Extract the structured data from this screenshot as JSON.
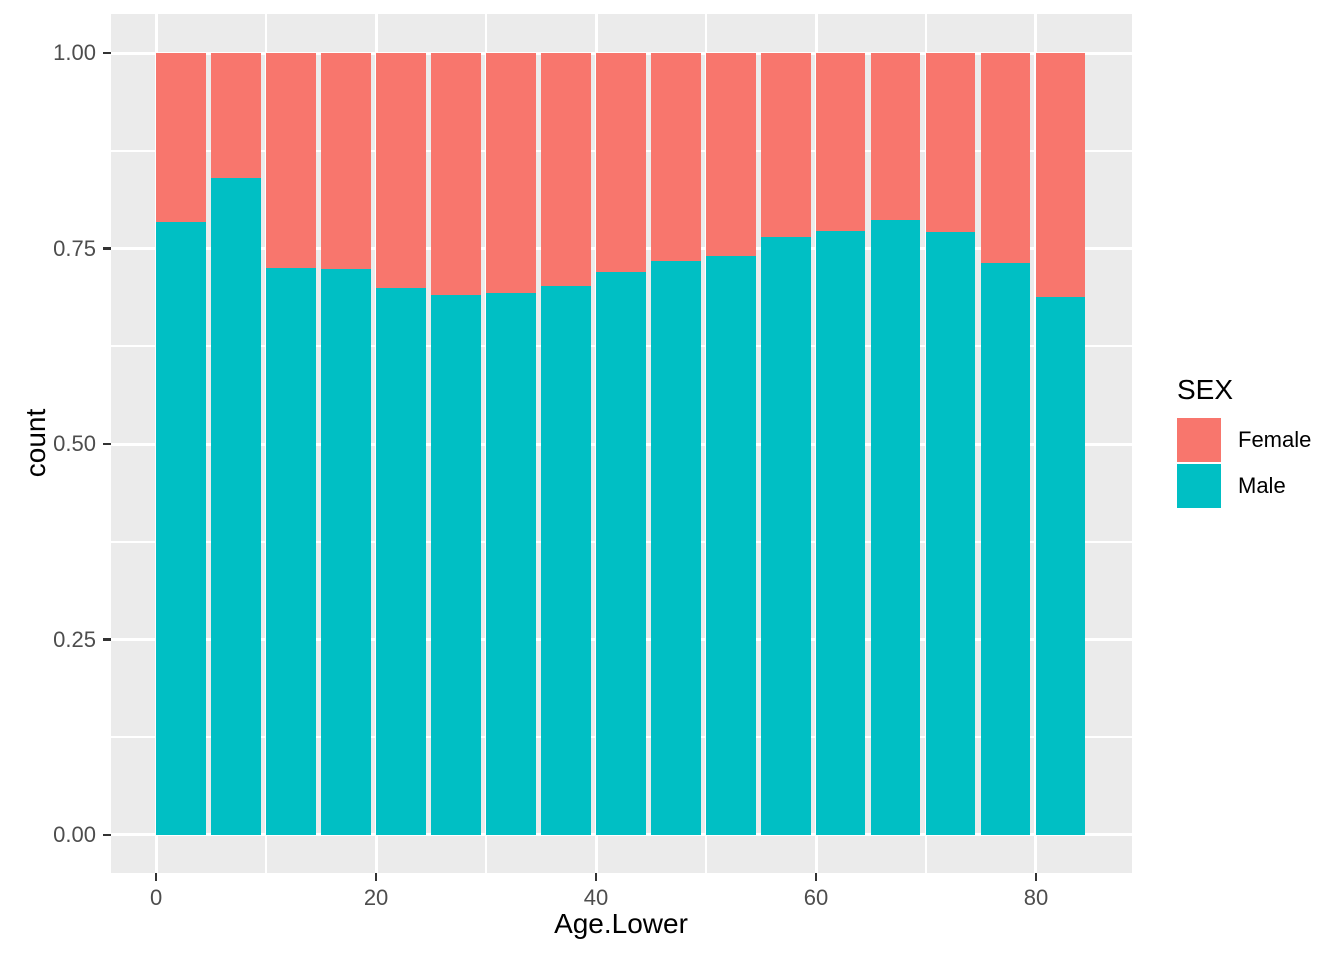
{
  "chart_data": {
    "type": "bar",
    "variant": "stacked-normalized",
    "title": "",
    "x_axis": {
      "label": "Age.Lower",
      "tick_values": [
        0,
        20,
        40,
        60,
        80
      ],
      "tick_labels": [
        "0",
        "20",
        "40",
        "60",
        "80"
      ],
      "minor_ticks": [
        10,
        30,
        50,
        70
      ],
      "range": [
        -4.1,
        88.73
      ],
      "grid": true
    },
    "y_axis": {
      "label": "count",
      "tick_values": [
        0,
        0.25,
        0.5,
        0.75,
        1
      ],
      "tick_labels": [
        "0.00",
        "0.25",
        "0.50",
        "0.75",
        "1.00"
      ],
      "minor_ticks": [
        0.125,
        0.375,
        0.625,
        0.875
      ],
      "range": [
        -0.0486,
        1.0499
      ],
      "grid": true
    },
    "categories": [
      0,
      5,
      10,
      15,
      20,
      25,
      30,
      35,
      40,
      45,
      50,
      55,
      60,
      65,
      70,
      75,
      80
    ],
    "bar_width": 4.5,
    "stack_order": [
      "Male",
      "Female"
    ],
    "series": [
      {
        "name": "Male",
        "color": "#00BFC4",
        "values": [
          0.784,
          0.84,
          0.725,
          0.724,
          0.7,
          0.69,
          0.693,
          0.702,
          0.72,
          0.734,
          0.74,
          0.765,
          0.773,
          0.787,
          0.771,
          0.731,
          0.688
        ]
      },
      {
        "name": "Female",
        "color": "#F8766D",
        "values": [
          0.216,
          0.16,
          0.275,
          0.276,
          0.3,
          0.31,
          0.307,
          0.298,
          0.28,
          0.266,
          0.26,
          0.235,
          0.227,
          0.213,
          0.229,
          0.269,
          0.312
        ]
      }
    ],
    "legend": {
      "title": "SEX",
      "position": "right",
      "entries": [
        {
          "label": "Female",
          "color": "#F8766D"
        },
        {
          "label": "Male",
          "color": "#00BFC4"
        }
      ]
    }
  },
  "style": {
    "figure_bg": "#FFFFFF",
    "panel_bg": "#EBEBEB",
    "grid_color": "#FFFFFF",
    "tick_color": "#333333",
    "tick_label_color": "#4D4D4D",
    "female_color": "#F8766D",
    "male_color": "#00BFC4"
  }
}
